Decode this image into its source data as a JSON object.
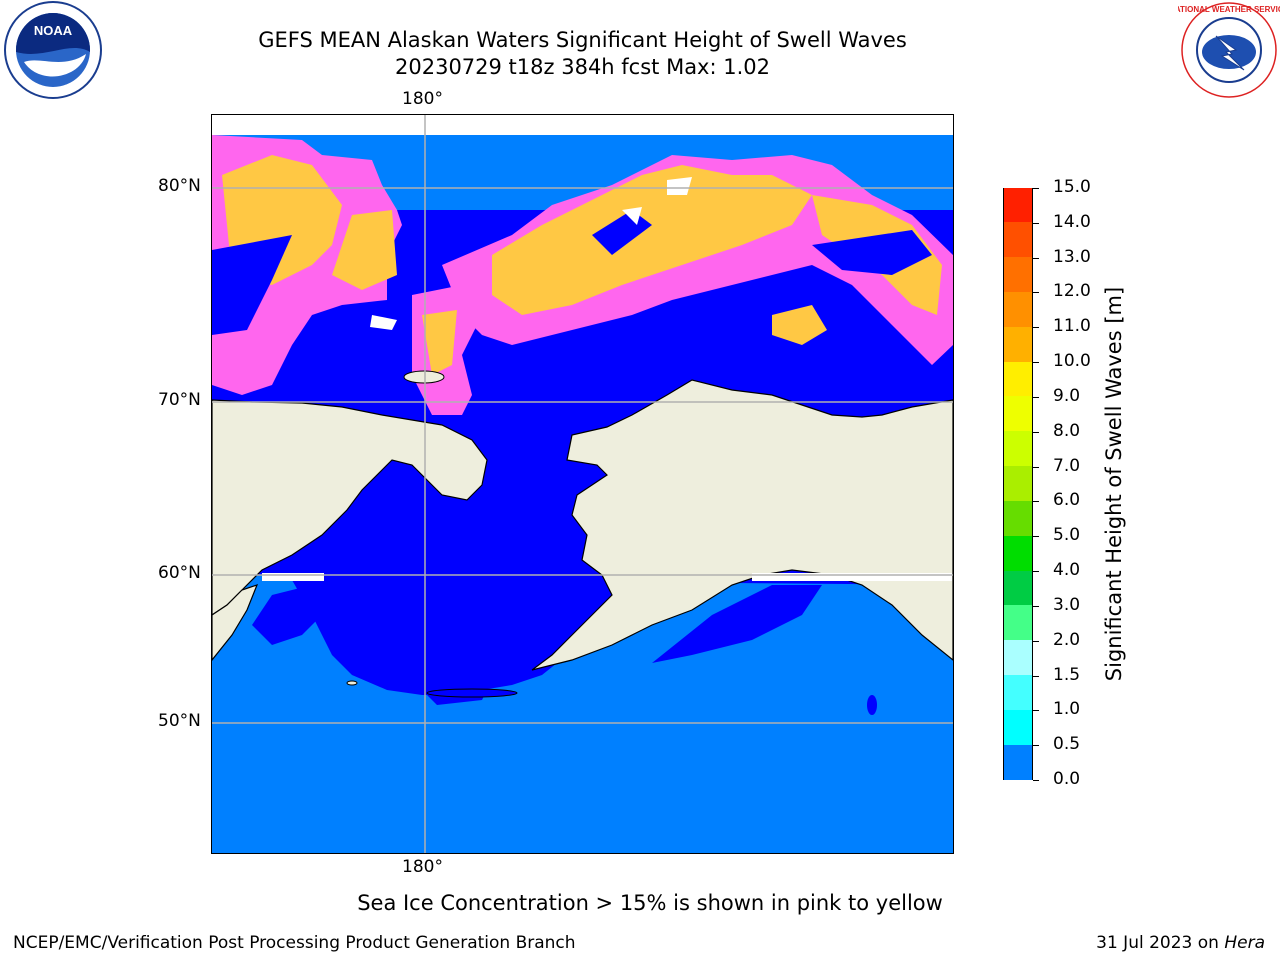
{
  "title": "GEFS MEAN Alaskan Waters Significant Height of Swell Waves",
  "subtitle": "20230729 t18z 384h fcst   Max: 1.02",
  "logos": {
    "left": {
      "icon": "noaa-logo",
      "text": "NOAA"
    },
    "right": {
      "icon": "nws-logo",
      "text": "NATIONAL WEATHER SERVICE"
    }
  },
  "map": {
    "lon_tick_top": "180°",
    "lon_tick_bottom": "180°",
    "lat_ticks": [
      "80°N",
      "70°N",
      "60°N",
      "50°N"
    ],
    "colors": {
      "land": "#EEEEDD",
      "deep_water": "#0000FF",
      "open_ocean": "#0080FF",
      "ice_pink": "#FF66EE",
      "ice_yellow": "#FFC844"
    }
  },
  "colorbar": {
    "label": "Significant Height of Swell Waves [m]",
    "ticks": [
      "15.0",
      "14.0",
      "13.0",
      "12.0",
      "11.0",
      "10.0",
      "9.0",
      "8.0",
      "7.0",
      "6.0",
      "5.0",
      "4.0",
      "3.0",
      "2.0",
      "1.5",
      "1.0",
      "0.5",
      "0.0"
    ],
    "colors": [
      "#FF0000",
      "#FF2000",
      "#FF5000",
      "#FF7000",
      "#FF9000",
      "#FFB000",
      "#FFEE00",
      "#EEFF00",
      "#CCFF00",
      "#AAEE00",
      "#66DD00",
      "#00DD00",
      "#00CC44",
      "#44FF88",
      "#AAFFFF",
      "#44FFFF",
      "#00FFFF",
      "#0080FF",
      "#0000FF"
    ]
  },
  "caption": "Sea Ice Concentration > 15% is shown in pink to yellow",
  "footer": {
    "left": "NCEP/EMC/Verification Post Processing Product Generation Branch",
    "right_date": "31 Jul 2023 on ",
    "right_host": "Hera"
  }
}
